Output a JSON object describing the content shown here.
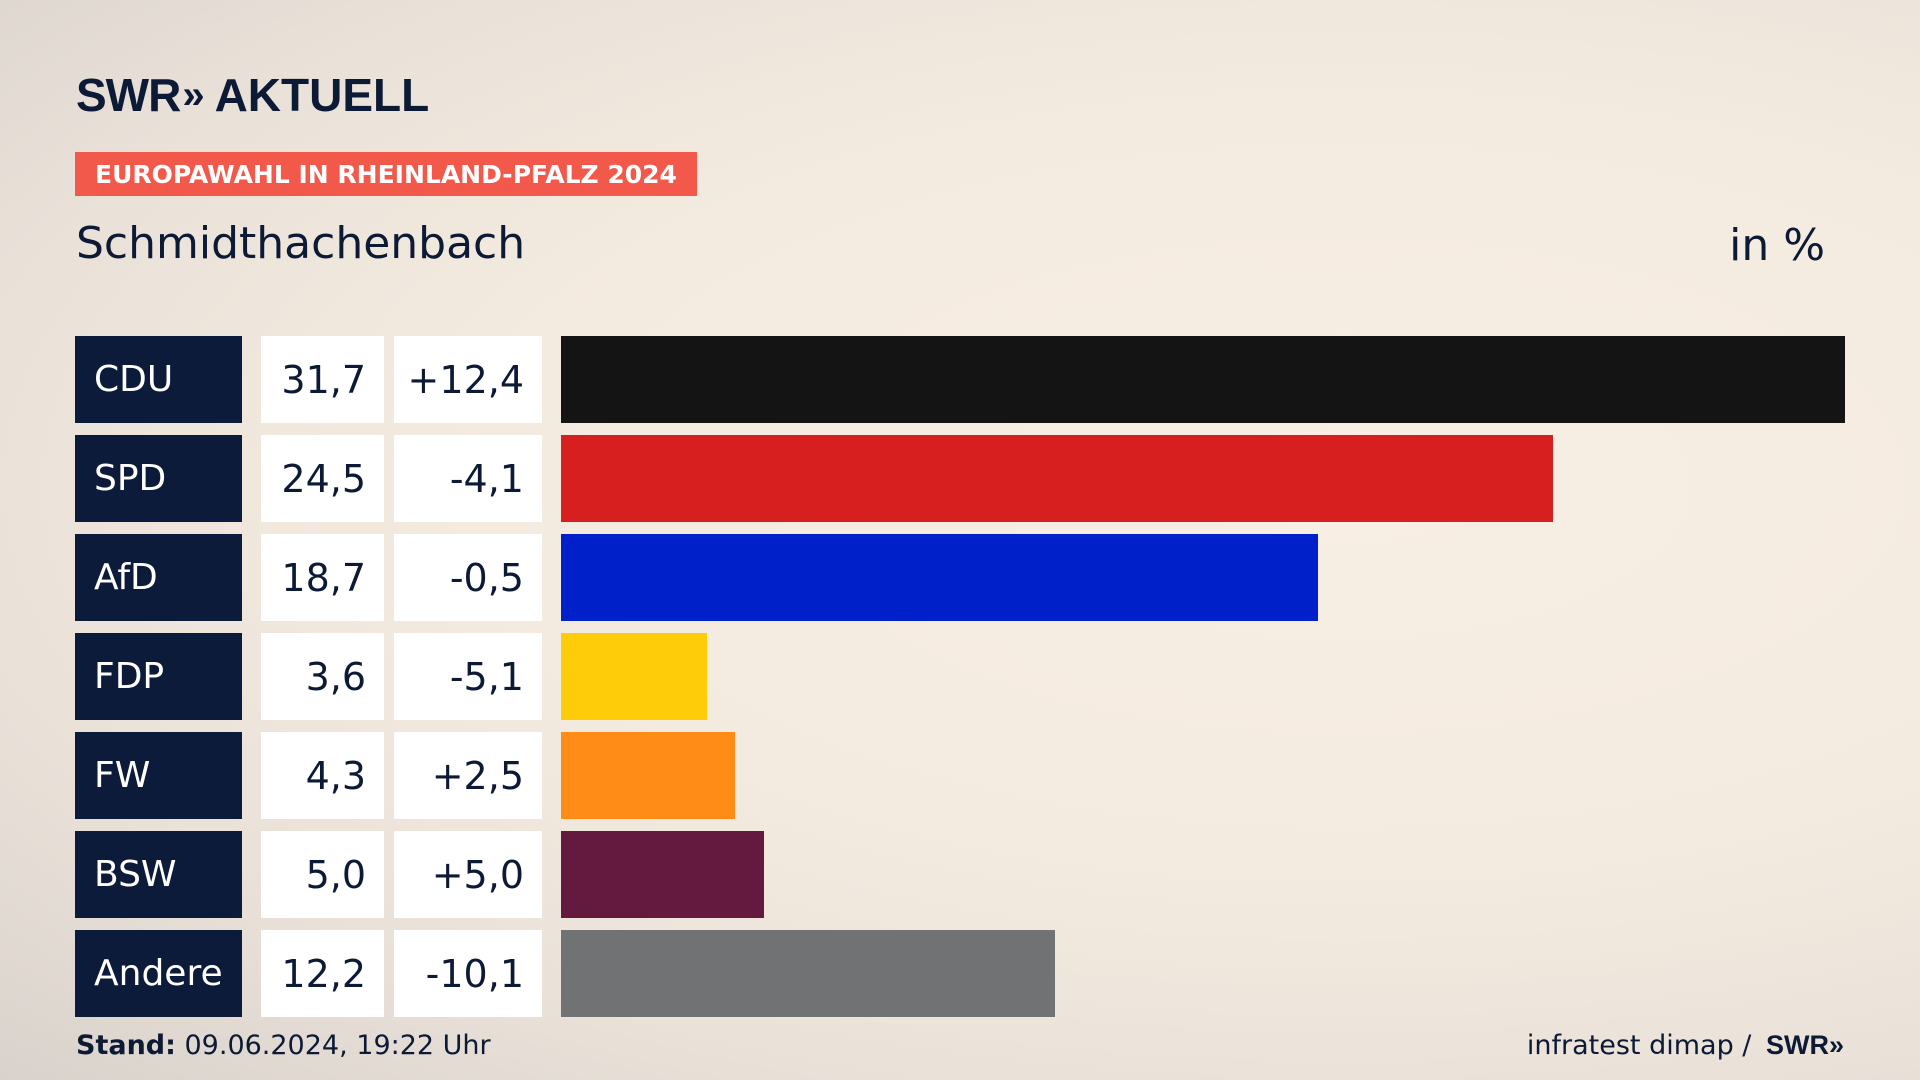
{
  "logo": {
    "brand": "SWR",
    "chevrons": "»",
    "product": "AKTUELL"
  },
  "badge": "EUROPAWAHL IN RHEINLAND-PFALZ 2024",
  "place": "Schmidthachenbach",
  "unit": "in %",
  "footer": {
    "stand_label": "Stand:",
    "stand_value": " 09.06.2024, 19:22 Uhr",
    "source": "infratest dimap / ",
    "source_brand": "SWR»"
  },
  "chart_data": {
    "type": "bar",
    "orientation": "horizontal",
    "categories": [
      "CDU",
      "SPD",
      "AfD",
      "FDP",
      "FW",
      "BSW",
      "Andere"
    ],
    "values": [
      31.7,
      24.5,
      18.7,
      3.6,
      4.3,
      5.0,
      12.2
    ],
    "value_labels": [
      "31,7",
      "24,5",
      "18,7",
      "3,6",
      "4,3",
      "5,0",
      "12,2"
    ],
    "diffs": [
      12.4,
      -4.1,
      -0.5,
      -5.1,
      2.5,
      5.0,
      -10.1
    ],
    "diff_labels": [
      "+12,4",
      "-4,1",
      "-0,5",
      "-5,1",
      "+2,5",
      "+5,0",
      "-10,1"
    ],
    "colors": [
      "#141414",
      "#d81f20",
      "#0021c9",
      "#ffcc0a",
      "#ff8c17",
      "#641a3e",
      "#717274"
    ],
    "xlim": [
      0,
      31.7
    ]
  }
}
